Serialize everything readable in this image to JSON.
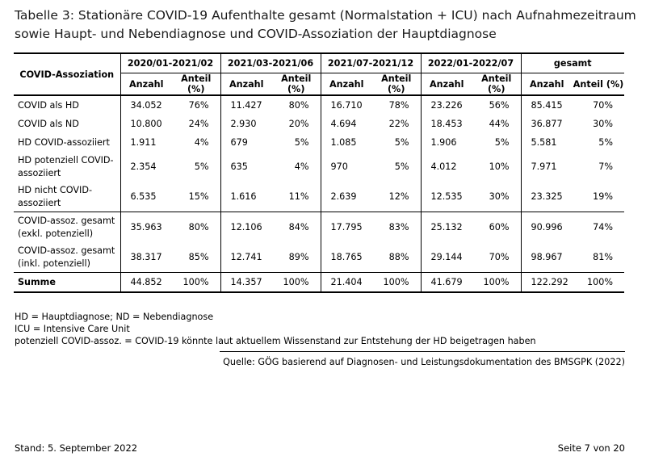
{
  "title": "Tabelle 3: Stationäre COVID-19 Aufenthalte gesamt (Normalstation + ICU) nach Aufnahmezeitraum sowie Haupt- und Nebendiagnose und COVID-Assoziation der Hauptdiagnose",
  "table": {
    "row_header": "COVID-Assoziation",
    "periods": [
      "2020/01-2021/02",
      "2021/03-2021/06",
      "2021/07-2021/12",
      "2022/01-2022/07",
      "gesamt"
    ],
    "sub_headers": {
      "count": "Anzahl",
      "share": "Anteil (%)"
    },
    "rows": [
      {
        "label": "COVID als HD",
        "cells": [
          "34.052",
          "76%",
          "11.427",
          "80%",
          "16.710",
          "78%",
          "23.226",
          "56%",
          "85.415",
          "70%"
        ]
      },
      {
        "label": "COVID als ND",
        "cells": [
          "10.800",
          "24%",
          "2.930",
          "20%",
          "4.694",
          "22%",
          "18.453",
          "44%",
          "36.877",
          "30%"
        ]
      },
      {
        "label": "HD COVID-assoziiert",
        "cells": [
          "1.911",
          "4%",
          "679",
          "5%",
          "1.085",
          "5%",
          "1.906",
          "5%",
          "5.581",
          "5%"
        ]
      },
      {
        "label": "HD potenziell COVID-assoziiert",
        "cells": [
          "2.354",
          "5%",
          "635",
          "4%",
          "970",
          "5%",
          "4.012",
          "10%",
          "7.971",
          "7%"
        ]
      },
      {
        "label": "HD nicht COVID-assoziiert",
        "cells": [
          "6.535",
          "15%",
          "1.616",
          "11%",
          "2.639",
          "12%",
          "12.535",
          "30%",
          "23.325",
          "19%"
        ]
      },
      {
        "label": "COVID-assoz. gesamt (exkl. potenziell)",
        "cells": [
          "35.963",
          "80%",
          "12.106",
          "84%",
          "17.795",
          "83%",
          "25.132",
          "60%",
          "90.996",
          "74%"
        ]
      },
      {
        "label": "COVID-assoz. gesamt (inkl. potenziell)",
        "cells": [
          "38.317",
          "85%",
          "12.741",
          "89%",
          "18.765",
          "88%",
          "29.144",
          "70%",
          "98.967",
          "81%"
        ]
      },
      {
        "label": "Summe",
        "cells": [
          "44.852",
          "100%",
          "14.357",
          "100%",
          "21.404",
          "100%",
          "41.679",
          "100%",
          "122.292",
          "100%"
        ]
      }
    ]
  },
  "footnotes": [
    "HD = Hauptdiagnose; ND = Nebendiagnose",
    "ICU = Intensive Care Unit",
    "potenziell COVID-assoz. = COVID-19 könnte laut aktuellem Wissenstand zur Entstehung der HD beigetragen haben"
  ],
  "source": "Quelle: GÖG basierend auf Diagnosen- und Leistungsdokumentation des BMSGPK (2022)",
  "footer": {
    "date": "Stand: 5. September 2022",
    "page": "Seite 7 von 20"
  }
}
